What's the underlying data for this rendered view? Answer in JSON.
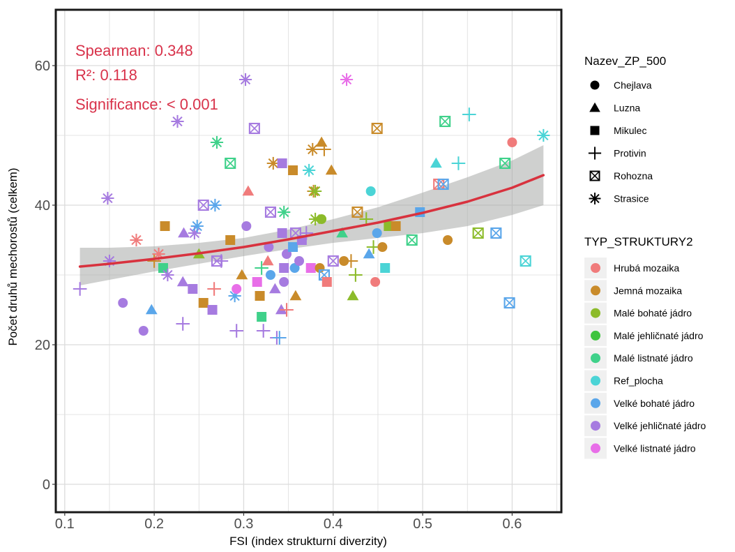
{
  "chart_data": {
    "type": "scatter",
    "xlabel": "FSI (index strukturní diverzity)",
    "ylabel": "Počet druhů mechorostů (celkem)",
    "xlim": [
      0.09,
      0.655
    ],
    "ylim": [
      -4,
      68
    ],
    "x_ticks": [
      0.1,
      0.2,
      0.3,
      0.4,
      0.5,
      0.6
    ],
    "x_tick_labels": [
      "0.1",
      "0.2",
      "0.3",
      "0.4",
      "0.5",
      "0.6"
    ],
    "y_ticks": [
      0,
      20,
      40,
      60
    ],
    "y_tick_labels": [
      "0",
      "20",
      "40",
      "60"
    ],
    "grid": true,
    "annotations": [
      "Spearman: 0.348",
      "R²: 0.118",
      "Significance: < 0.001"
    ],
    "trend": {
      "x": [
        0.117,
        0.15,
        0.2,
        0.25,
        0.3,
        0.35,
        0.4,
        0.45,
        0.5,
        0.55,
        0.6,
        0.635
      ],
      "y": [
        31.2,
        31.6,
        32.3,
        33.1,
        34.0,
        35.1,
        36.3,
        37.5,
        38.9,
        40.5,
        42.5,
        44.3
      ],
      "lower": [
        28.5,
        29.3,
        30.5,
        31.6,
        32.7,
        33.7,
        34.6,
        35.3,
        36.0,
        37.0,
        38.6,
        40.0
      ],
      "upper": [
        33.9,
        33.9,
        34.1,
        34.6,
        35.3,
        36.5,
        38.0,
        39.7,
        41.8,
        44.0,
        46.4,
        48.6
      ],
      "color": "#d8323e",
      "band_color": "#a8aaa8"
    },
    "legend_shape": {
      "title": "Nazev_ZP_500",
      "items": [
        {
          "label": "Chejlava",
          "shape": "circle"
        },
        {
          "label": "Luzna",
          "shape": "triangle"
        },
        {
          "label": "Mikulec",
          "shape": "square"
        },
        {
          "label": "Protivin",
          "shape": "plus"
        },
        {
          "label": "Rohozna",
          "shape": "boxcross"
        },
        {
          "label": "Strasice",
          "shape": "asterisk"
        }
      ]
    },
    "legend_color": {
      "title": "TYP_STRUKTURY2",
      "items": [
        {
          "label": "Hrubá mozaika",
          "color": "#f07b7b"
        },
        {
          "label": "Jemná mozaika",
          "color": "#c98b2a"
        },
        {
          "label": "Malé bohaté jádro",
          "color": "#8cbb2a"
        },
        {
          "label": "Malé jehličnaté jádro",
          "color": "#3fc43f"
        },
        {
          "label": "Malé listnaté jádro",
          "color": "#3fd18a"
        },
        {
          "label": "Ref_plocha",
          "color": "#4bd4d6"
        },
        {
          "label": "Velké bohaté jádro",
          "color": "#5aa6ea"
        },
        {
          "label": "Velké jehličnaté jádro",
          "color": "#a67be0"
        },
        {
          "label": "Velké listnaté jádro",
          "color": "#e86ee8"
        }
      ]
    },
    "points": [
      {
        "x": 0.117,
        "y": 28,
        "shape": "plus",
        "cat": "Velké jehličnaté jádro"
      },
      {
        "x": 0.148,
        "y": 41,
        "shape": "asterisk",
        "cat": "Velké jehličnaté jádro"
      },
      {
        "x": 0.15,
        "y": 32,
        "shape": "asterisk",
        "cat": "Velké jehličnaté jádro"
      },
      {
        "x": 0.165,
        "y": 26,
        "shape": "circle",
        "cat": "Velké jehličnaté jádro"
      },
      {
        "x": 0.18,
        "y": 35,
        "shape": "asterisk",
        "cat": "Hrubá mozaika"
      },
      {
        "x": 0.188,
        "y": 22,
        "shape": "circle",
        "cat": "Velké jehličnaté jádro"
      },
      {
        "x": 0.197,
        "y": 25,
        "shape": "triangle",
        "cat": "Velké bohaté jádro"
      },
      {
        "x": 0.2,
        "y": 32,
        "shape": "plus",
        "cat": "Jemná mozaika"
      },
      {
        "x": 0.205,
        "y": 33,
        "shape": "asterisk",
        "cat": "Hrubá mozaika"
      },
      {
        "x": 0.212,
        "y": 37,
        "shape": "square",
        "cat": "Jemná mozaika"
      },
      {
        "x": 0.21,
        "y": 31,
        "shape": "square",
        "cat": "Malé listnaté jádro"
      },
      {
        "x": 0.215,
        "y": 30,
        "shape": "asterisk",
        "cat": "Velké jehličnaté jádro"
      },
      {
        "x": 0.226,
        "y": 52,
        "shape": "asterisk",
        "cat": "Velké jehličnaté jádro"
      },
      {
        "x": 0.232,
        "y": 23,
        "shape": "plus",
        "cat": "Velké jehličnaté jádro"
      },
      {
        "x": 0.233,
        "y": 36,
        "shape": "triangle",
        "cat": "Velké jehličnaté jádro"
      },
      {
        "x": 0.232,
        "y": 29,
        "shape": "triangle",
        "cat": "Velké jehličnaté jádro"
      },
      {
        "x": 0.243,
        "y": 28,
        "shape": "square",
        "cat": "Velké jehličnaté jádro"
      },
      {
        "x": 0.245,
        "y": 36,
        "shape": "asterisk",
        "cat": "Velké jehličnaté jádro"
      },
      {
        "x": 0.248,
        "y": 37,
        "shape": "asterisk",
        "cat": "Velké bohaté jádro"
      },
      {
        "x": 0.25,
        "y": 33,
        "shape": "triangle",
        "cat": "Malé bohaté jádro"
      },
      {
        "x": 0.255,
        "y": 26,
        "shape": "square",
        "cat": "Jemná mozaika"
      },
      {
        "x": 0.255,
        "y": 40,
        "shape": "boxcross",
        "cat": "Velké jehličnaté jádro"
      },
      {
        "x": 0.265,
        "y": 25,
        "shape": "square",
        "cat": "Velké jehličnaté jádro"
      },
      {
        "x": 0.267,
        "y": 28,
        "shape": "plus",
        "cat": "Hrubá mozaika"
      },
      {
        "x": 0.268,
        "y": 40,
        "shape": "asterisk",
        "cat": "Velké bohaté jádro"
      },
      {
        "x": 0.27,
        "y": 49,
        "shape": "asterisk",
        "cat": "Malé listnaté jádro"
      },
      {
        "x": 0.27,
        "y": 32,
        "shape": "boxcross",
        "cat": "Velké jehličnaté jádro"
      },
      {
        "x": 0.275,
        "y": 32,
        "shape": "plus",
        "cat": "Velké jehličnaté jádro"
      },
      {
        "x": 0.285,
        "y": 46,
        "shape": "boxcross",
        "cat": "Malé listnaté jádro"
      },
      {
        "x": 0.285,
        "y": 35,
        "shape": "square",
        "cat": "Jemná mozaika"
      },
      {
        "x": 0.29,
        "y": 27,
        "shape": "asterisk",
        "cat": "Velké bohaté jádro"
      },
      {
        "x": 0.292,
        "y": 28,
        "shape": "circle",
        "cat": "Velké listnaté jádro"
      },
      {
        "x": 0.292,
        "y": 22,
        "shape": "plus",
        "cat": "Velké jehličnaté jádro"
      },
      {
        "x": 0.298,
        "y": 30,
        "shape": "triangle",
        "cat": "Jemná mozaika"
      },
      {
        "x": 0.302,
        "y": 58,
        "shape": "asterisk",
        "cat": "Velké jehličnaté jádro"
      },
      {
        "x": 0.303,
        "y": 37,
        "shape": "circle",
        "cat": "Velké jehličnaté jádro"
      },
      {
        "x": 0.305,
        "y": 42,
        "shape": "triangle",
        "cat": "Hrubá mozaika"
      },
      {
        "x": 0.312,
        "y": 51,
        "shape": "boxcross",
        "cat": "Velké jehličnaté jádro"
      },
      {
        "x": 0.315,
        "y": 29,
        "shape": "square",
        "cat": "Velké listnaté jádro"
      },
      {
        "x": 0.318,
        "y": 27,
        "shape": "square",
        "cat": "Jemná mozaika"
      },
      {
        "x": 0.32,
        "y": 31,
        "shape": "plus",
        "cat": "Malé listnaté jádro"
      },
      {
        "x": 0.32,
        "y": 24,
        "shape": "square",
        "cat": "Malé listnaté jádro"
      },
      {
        "x": 0.322,
        "y": 22,
        "shape": "plus",
        "cat": "Velké jehličnaté jádro"
      },
      {
        "x": 0.327,
        "y": 32,
        "shape": "triangle",
        "cat": "Hrubá mozaika"
      },
      {
        "x": 0.328,
        "y": 34,
        "shape": "circle",
        "cat": "Velké jehličnaté jádro"
      },
      {
        "x": 0.33,
        "y": 39,
        "shape": "boxcross",
        "cat": "Velké jehličnaté jádro"
      },
      {
        "x": 0.33,
        "y": 30,
        "shape": "circle",
        "cat": "Velké bohaté jádro"
      },
      {
        "x": 0.333,
        "y": 46,
        "shape": "asterisk",
        "cat": "Jemná mozaika"
      },
      {
        "x": 0.335,
        "y": 28,
        "shape": "triangle",
        "cat": "Velké jehličnaté jádro"
      },
      {
        "x": 0.337,
        "y": 21,
        "shape": "plus",
        "cat": "Velké jehličnaté jádro"
      },
      {
        "x": 0.34,
        "y": 21,
        "shape": "plus",
        "cat": "Velké bohaté jádro"
      },
      {
        "x": 0.342,
        "y": 25,
        "shape": "triangle",
        "cat": "Velké jehličnaté jádro"
      },
      {
        "x": 0.343,
        "y": 46,
        "shape": "square",
        "cat": "Velké jehličnaté jádro"
      },
      {
        "x": 0.343,
        "y": 36,
        "shape": "square",
        "cat": "Velké jehličnaté jádro"
      },
      {
        "x": 0.345,
        "y": 39,
        "shape": "asterisk",
        "cat": "Malé listnaté jádro"
      },
      {
        "x": 0.345,
        "y": 31,
        "shape": "square",
        "cat": "Velké jehličnaté jádro"
      },
      {
        "x": 0.345,
        "y": 29,
        "shape": "circle",
        "cat": "Velké jehličnaté jádro"
      },
      {
        "x": 0.348,
        "y": 25,
        "shape": "plus",
        "cat": "Hrubá mozaika"
      },
      {
        "x": 0.348,
        "y": 33,
        "shape": "circle",
        "cat": "Velké jehličnaté jádro"
      },
      {
        "x": 0.355,
        "y": 45,
        "shape": "square",
        "cat": "Jemná mozaika"
      },
      {
        "x": 0.355,
        "y": 34,
        "shape": "square",
        "cat": "Velké bohaté jádro"
      },
      {
        "x": 0.357,
        "y": 31,
        "shape": "circle",
        "cat": "Velké bohaté jádro"
      },
      {
        "x": 0.358,
        "y": 36,
        "shape": "boxcross",
        "cat": "Velké jehličnaté jádro"
      },
      {
        "x": 0.358,
        "y": 27,
        "shape": "triangle",
        "cat": "Jemná mozaika"
      },
      {
        "x": 0.362,
        "y": 32,
        "shape": "circle",
        "cat": "Velké jehličnaté jádro"
      },
      {
        "x": 0.365,
        "y": 35,
        "shape": "square",
        "cat": "Velké jehličnaté jádro"
      },
      {
        "x": 0.37,
        "y": 36,
        "shape": "plus",
        "cat": "Velké jehličnaté jádro"
      },
      {
        "x": 0.373,
        "y": 45,
        "shape": "asterisk",
        "cat": "Ref_plocha"
      },
      {
        "x": 0.375,
        "y": 31,
        "shape": "square",
        "cat": "Velké listnaté jádro"
      },
      {
        "x": 0.377,
        "y": 48,
        "shape": "asterisk",
        "cat": "Jemná mozaika"
      },
      {
        "x": 0.378,
        "y": 42,
        "shape": "asterisk",
        "cat": "Jemná mozaika"
      },
      {
        "x": 0.38,
        "y": 42,
        "shape": "asterisk",
        "cat": "Malé bohaté jádro"
      },
      {
        "x": 0.38,
        "y": 38,
        "shape": "asterisk",
        "cat": "Malé bohaté jádro"
      },
      {
        "x": 0.385,
        "y": 31,
        "shape": "circle",
        "cat": "Jemná mozaika"
      },
      {
        "x": 0.387,
        "y": 49,
        "shape": "triangle",
        "cat": "Jemná mozaika"
      },
      {
        "x": 0.387,
        "y": 38,
        "shape": "circle",
        "cat": "Malé bohaté jádro"
      },
      {
        "x": 0.39,
        "y": 48,
        "shape": "plus",
        "cat": "Jemná mozaika"
      },
      {
        "x": 0.39,
        "y": 30,
        "shape": "boxcross",
        "cat": "Velké bohaté jádro"
      },
      {
        "x": 0.393,
        "y": 29,
        "shape": "square",
        "cat": "Hrubá mozaika"
      },
      {
        "x": 0.398,
        "y": 45,
        "shape": "triangle",
        "cat": "Jemná mozaika"
      },
      {
        "x": 0.4,
        "y": 32,
        "shape": "boxcross",
        "cat": "Velké jehličnaté jádro"
      },
      {
        "x": 0.41,
        "y": 36,
        "shape": "triangle",
        "cat": "Malé listnaté jádro"
      },
      {
        "x": 0.412,
        "y": 32,
        "shape": "circle",
        "cat": "Jemná mozaika"
      },
      {
        "x": 0.415,
        "y": 58,
        "shape": "asterisk",
        "cat": "Velké listnaté jádro"
      },
      {
        "x": 0.42,
        "y": 32,
        "shape": "plus",
        "cat": "Jemná mozaika"
      },
      {
        "x": 0.422,
        "y": 27,
        "shape": "triangle",
        "cat": "Malé bohaté jádro"
      },
      {
        "x": 0.425,
        "y": 30,
        "shape": "plus",
        "cat": "Malé bohaté jádro"
      },
      {
        "x": 0.427,
        "y": 39,
        "shape": "boxcross",
        "cat": "Jemná mozaika"
      },
      {
        "x": 0.437,
        "y": 38,
        "shape": "plus",
        "cat": "Malé bohaté jádro"
      },
      {
        "x": 0.44,
        "y": 33,
        "shape": "triangle",
        "cat": "Velké bohaté jádro"
      },
      {
        "x": 0.442,
        "y": 42,
        "shape": "circle",
        "cat": "Ref_plocha"
      },
      {
        "x": 0.445,
        "y": 34,
        "shape": "plus",
        "cat": "Malé bohaté jádro"
      },
      {
        "x": 0.447,
        "y": 29,
        "shape": "circle",
        "cat": "Hrubá mozaika"
      },
      {
        "x": 0.449,
        "y": 36,
        "shape": "circle",
        "cat": "Velké bohaté jádro"
      },
      {
        "x": 0.449,
        "y": 51,
        "shape": "boxcross",
        "cat": "Jemná mozaika"
      },
      {
        "x": 0.455,
        "y": 34,
        "shape": "circle",
        "cat": "Jemná mozaika"
      },
      {
        "x": 0.458,
        "y": 31,
        "shape": "square",
        "cat": "Ref_plocha"
      },
      {
        "x": 0.462,
        "y": 37,
        "shape": "square",
        "cat": "Malé bohaté jádro"
      },
      {
        "x": 0.47,
        "y": 37,
        "shape": "square",
        "cat": "Jemná mozaika"
      },
      {
        "x": 0.488,
        "y": 35,
        "shape": "boxcross",
        "cat": "Malé listnaté jádro"
      },
      {
        "x": 0.497,
        "y": 39,
        "shape": "square",
        "cat": "Velké bohaté jádro"
      },
      {
        "x": 0.515,
        "y": 46,
        "shape": "triangle",
        "cat": "Ref_plocha"
      },
      {
        "x": 0.518,
        "y": 43,
        "shape": "boxcross",
        "cat": "Hrubá mozaika"
      },
      {
        "x": 0.523,
        "y": 43,
        "shape": "boxcross",
        "cat": "Velké bohaté jádro"
      },
      {
        "x": 0.525,
        "y": 52,
        "shape": "boxcross",
        "cat": "Malé listnaté jádro"
      },
      {
        "x": 0.528,
        "y": 35,
        "shape": "circle",
        "cat": "Jemná mozaika"
      },
      {
        "x": 0.54,
        "y": 46,
        "shape": "plus",
        "cat": "Ref_plocha"
      },
      {
        "x": 0.552,
        "y": 53,
        "shape": "plus",
        "cat": "Ref_plocha"
      },
      {
        "x": 0.562,
        "y": 36,
        "shape": "boxcross",
        "cat": "Malé bohaté jádro"
      },
      {
        "x": 0.582,
        "y": 36,
        "shape": "boxcross",
        "cat": "Velké bohaté jádro"
      },
      {
        "x": 0.592,
        "y": 46,
        "shape": "boxcross",
        "cat": "Malé listnaté jádro"
      },
      {
        "x": 0.597,
        "y": 26,
        "shape": "boxcross",
        "cat": "Velké bohaté jádro"
      },
      {
        "x": 0.6,
        "y": 49,
        "shape": "circle",
        "cat": "Hrubá mozaika"
      },
      {
        "x": 0.615,
        "y": 32,
        "shape": "boxcross",
        "cat": "Ref_plocha"
      },
      {
        "x": 0.635,
        "y": 50,
        "shape": "asterisk",
        "cat": "Ref_plocha"
      }
    ]
  }
}
